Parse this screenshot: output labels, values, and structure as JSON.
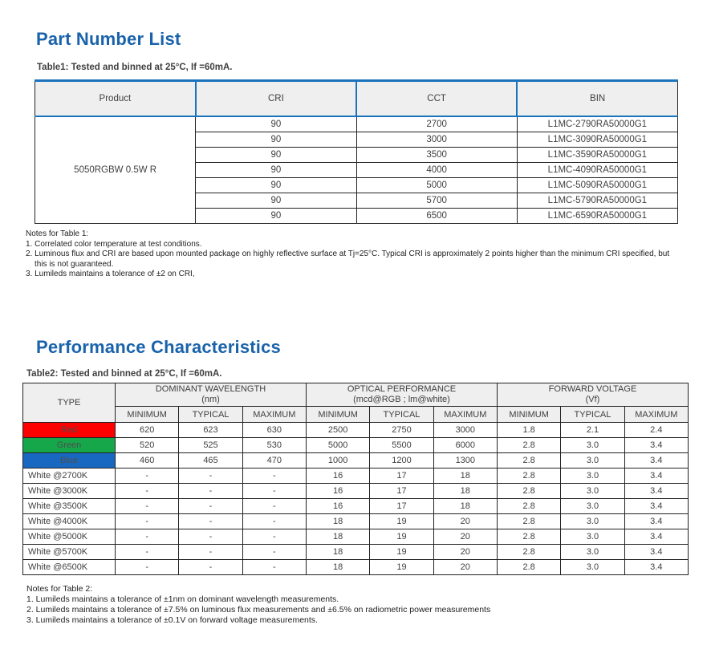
{
  "colors": {
    "accent_blue": "#1a63ab",
    "table1_border_blue": "#1b74bb",
    "header_gray": "#efefef",
    "red_cell": "#fe0000",
    "green_cell": "#17a74b",
    "blue_cell": "#1868c2",
    "colored_label_text": "#4d4d4d"
  },
  "section1": {
    "title": "Part Number List",
    "table_caption": "Table1: Tested and binned at 25°C, If =60mA.",
    "table": {
      "headers": [
        "Product",
        "CRI",
        "CCT",
        "BIN"
      ],
      "product": "5050RGBW 0.5W R",
      "rows": [
        {
          "cri": "90",
          "cct": "2700",
          "bin": "L1MC-2790RA50000G1"
        },
        {
          "cri": "90",
          "cct": "3000",
          "bin": "L1MC-3090RA50000G1"
        },
        {
          "cri": "90",
          "cct": "3500",
          "bin": "L1MC-3590RA50000G1"
        },
        {
          "cri": "90",
          "cct": "4000",
          "bin": "L1MC-4090RA50000G1"
        },
        {
          "cri": "90",
          "cct": "5000",
          "bin": "L1MC-5090RA50000G1"
        },
        {
          "cri": "90",
          "cct": "5700",
          "bin": "L1MC-5790RA50000G1"
        },
        {
          "cri": "90",
          "cct": "6500",
          "bin": "L1MC-6590RA50000G1"
        }
      ]
    },
    "notes_title": "Notes for Table 1:",
    "notes": [
      "1. Correlated color temperature at test conditions.",
      "2. Luminous flux and CRI are based upon mounted package on highly reflective surface at Tj=25°C. Typical CRI is approximately 2 points higher than the minimum CRI specified, but this is not guaranteed.",
      "3. Lumileds maintains a tolerance of ±2 on CRI,"
    ]
  },
  "section2": {
    "title": "Performance Characteristics",
    "table_caption": "Table2: Tested and binned at 25°C, If =60mA.",
    "table": {
      "type_header": "TYPE",
      "groups": [
        {
          "line1": "DOMINANT WAVELENGTH",
          "line2": "(nm)"
        },
        {
          "line1": "OPTICAL PERFORMANCE",
          "line2": "(mcd@RGB ; lm@white)"
        },
        {
          "line1": "FORWARD VOLTAGE",
          "line2": "(Vf)"
        }
      ],
      "sub_headers": [
        "MINIMUM",
        "TYPICAL",
        "MAXIMUM"
      ],
      "rows": [
        {
          "type": "Red",
          "bg": "#fe0000",
          "align": "center",
          "values": [
            "620",
            "623",
            "630",
            "2500",
            "2750",
            "3000",
            "1.8",
            "2.1",
            "2.4"
          ]
        },
        {
          "type": "Green",
          "bg": "#17a74b",
          "align": "center",
          "values": [
            "520",
            "525",
            "530",
            "5000",
            "5500",
            "6000",
            "2.8",
            "3.0",
            "3.4"
          ]
        },
        {
          "type": "Blue",
          "bg": "#1868c2",
          "align": "center",
          "values": [
            "460",
            "465",
            "470",
            "1000",
            "1200",
            "1300",
            "2.8",
            "3.0",
            "3.4"
          ]
        },
        {
          "type": "White @2700K",
          "bg": "",
          "align": "left",
          "values": [
            "-",
            "-",
            "-",
            "16",
            "17",
            "18",
            "2.8",
            "3.0",
            "3.4"
          ]
        },
        {
          "type": "White @3000K",
          "bg": "",
          "align": "left",
          "values": [
            "-",
            "-",
            "-",
            "16",
            "17",
            "18",
            "2.8",
            "3.0",
            "3.4"
          ]
        },
        {
          "type": "White @3500K",
          "bg": "",
          "align": "left",
          "values": [
            "-",
            "-",
            "-",
            "16",
            "17",
            "18",
            "2.8",
            "3.0",
            "3.4"
          ]
        },
        {
          "type": "White @4000K",
          "bg": "",
          "align": "left",
          "values": [
            "-",
            "-",
            "-",
            "18",
            "19",
            "20",
            "2.8",
            "3.0",
            "3.4"
          ]
        },
        {
          "type": "White @5000K",
          "bg": "",
          "align": "left",
          "values": [
            "-",
            "-",
            "-",
            "18",
            "19",
            "20",
            "2.8",
            "3.0",
            "3.4"
          ]
        },
        {
          "type": "White @5700K",
          "bg": "",
          "align": "left",
          "values": [
            "-",
            "-",
            "-",
            "18",
            "19",
            "20",
            "2.8",
            "3.0",
            "3.4"
          ]
        },
        {
          "type": "White @6500K",
          "bg": "",
          "align": "left",
          "values": [
            "-",
            "-",
            "-",
            "18",
            "19",
            "20",
            "2.8",
            "3.0",
            "3.4"
          ]
        }
      ]
    },
    "notes_title": "Notes for Table 2:",
    "notes": [
      "1.  Lumileds maintains a tolerance of ±1nm on dominant wavelength measurements.",
      "2.  Lumileds maintains a tolerance of ±7.5% on luminous flux measurements and ±6.5% on radiometric power measurements",
      "3.  Lumileds maintains a tolerance of ±0.1V on forward voltage measurements."
    ]
  }
}
